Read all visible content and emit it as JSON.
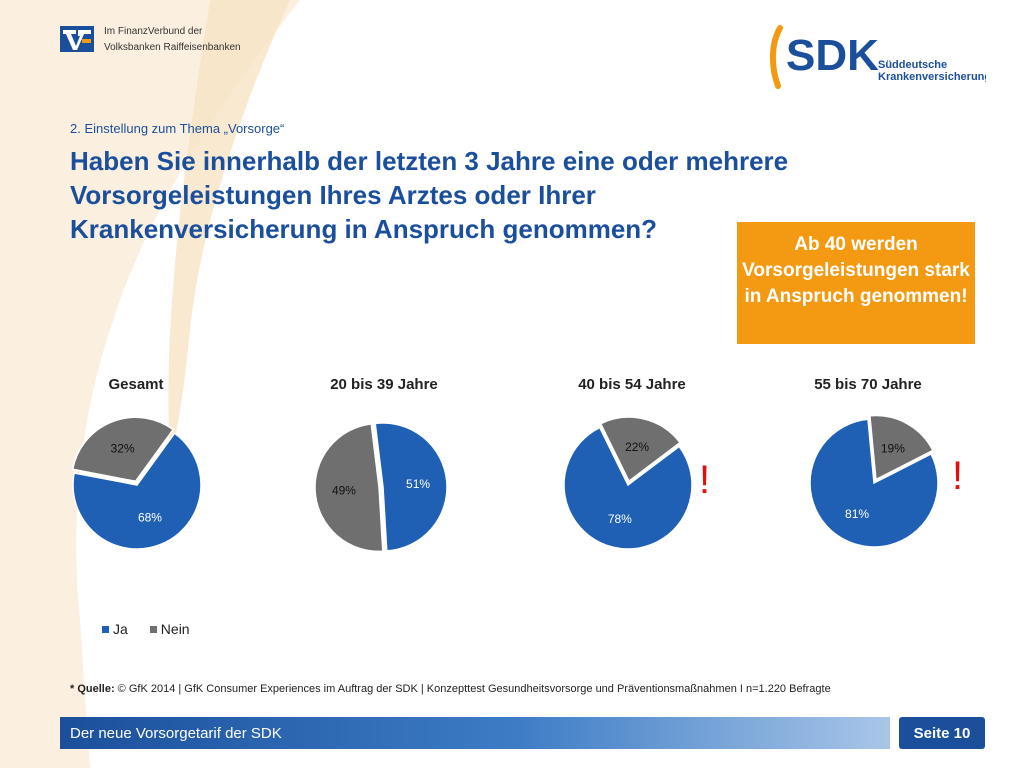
{
  "header": {
    "vb_line1": "Im FinanzVerbund der",
    "vb_line2": "Volksbanken Raiffeisenbanken",
    "sdk_logo_text": "SDK",
    "sdk_line1": "Süddeutsche",
    "sdk_line2": "Krankenversicherung"
  },
  "section_label": "2. Einstellung zum Thema „Vorsorge“",
  "question": "Haben Sie  innerhalb der letzten 3 Jahre eine oder mehrere Vorsorgeleistungen Ihres Arztes oder Ihrer Krankenversicherung in Anspruch genommen?",
  "callout": "Ab 40 werden Vorsorgeleistungen stark in Anspruch genommen!",
  "chart_data": {
    "type": "pie",
    "series_names": [
      "Ja",
      "Nein"
    ],
    "colors": {
      "ja": "#1f5fb4",
      "nein": "#6f6f6f",
      "highlight": "#e01010"
    },
    "charts": [
      {
        "title": "Gesamt",
        "values": [
          68,
          32
        ],
        "labels": [
          "68%",
          "32%"
        ],
        "highlight": false
      },
      {
        "title": "20 bis 39 Jahre",
        "values": [
          51,
          49
        ],
        "labels": [
          "51%",
          "49%"
        ],
        "highlight": false
      },
      {
        "title": "40 bis 54 Jahre",
        "values": [
          78,
          22
        ],
        "labels": [
          "78%",
          "22%"
        ],
        "highlight": true
      },
      {
        "title": "55 bis 70 Jahre",
        "values": [
          81,
          19
        ],
        "labels": [
          "81%",
          "19%"
        ],
        "highlight": true
      }
    ],
    "highlight_mark": "!",
    "legend": [
      "Ja",
      "Nein"
    ]
  },
  "footnote": {
    "prefix": "* Quelle:",
    "text": " © GfK 2014 | GfK Consumer Experiences im Auftrag der SDK | Konzepttest Gesundheitsvorsorge und Präventionsmaßnahmen I n=1.220 Befragte"
  },
  "footer": {
    "title": "Der neue Vorsorgetarif der SDK",
    "page": "Seite 10"
  }
}
